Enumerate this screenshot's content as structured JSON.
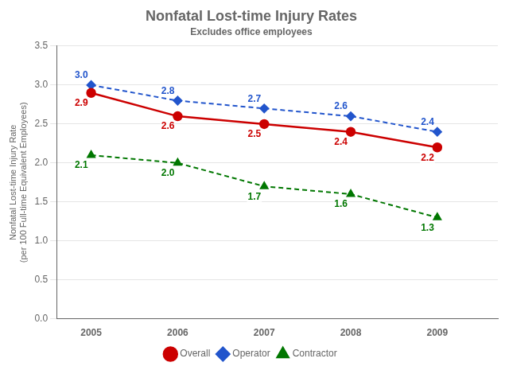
{
  "chart_data": {
    "type": "line",
    "title": "Nonfatal Lost-time Injury Rates",
    "subtitle": "Excludes office employees",
    "ylabel": "Nonfatal Lost-time Injury Rate\n(per 100 Full-time Equivalent Employees)",
    "x": [
      2005,
      2006,
      2007,
      2008,
      2009
    ],
    "series": [
      {
        "name": "Overall",
        "color": "#CC0000",
        "marker": "circle",
        "line_style": "solid",
        "values": [
          2.9,
          2.6,
          2.5,
          2.4,
          2.2
        ],
        "value_labels": [
          "2.9",
          "2.6",
          "2.5",
          "2.4",
          "2.2"
        ]
      },
      {
        "name": "Operator",
        "color": "#2255CC",
        "marker": "diamond",
        "line_style": "dashed",
        "values": [
          3.0,
          2.8,
          2.7,
          2.6,
          2.4
        ],
        "value_labels": [
          "3.0",
          "2.8",
          "2.7",
          "2.6",
          "2.4"
        ]
      },
      {
        "name": "Contractor",
        "color": "#007700",
        "marker": "triangle",
        "line_style": "dashed",
        "values": [
          2.1,
          2.0,
          1.7,
          1.6,
          1.3
        ],
        "value_labels": [
          "2.1",
          "2.0",
          "1.7",
          "1.6",
          "1.3"
        ]
      }
    ],
    "xlim": [
      2004.6,
      2009.7
    ],
    "xticks": [
      2005,
      2006,
      2007,
      2008,
      2009
    ],
    "ylim": [
      0,
      3.5
    ],
    "yticks": [
      {
        "value": 0,
        "label": "0.0"
      },
      0.5,
      {
        "value": 1,
        "label": "1.0"
      },
      1.5,
      {
        "value": 2,
        "label": "2.0"
      },
      2.5,
      {
        "value": 3,
        "label": "3.0"
      },
      3.5
    ],
    "grid": "y",
    "legend": "bottom",
    "data_labels": true
  }
}
